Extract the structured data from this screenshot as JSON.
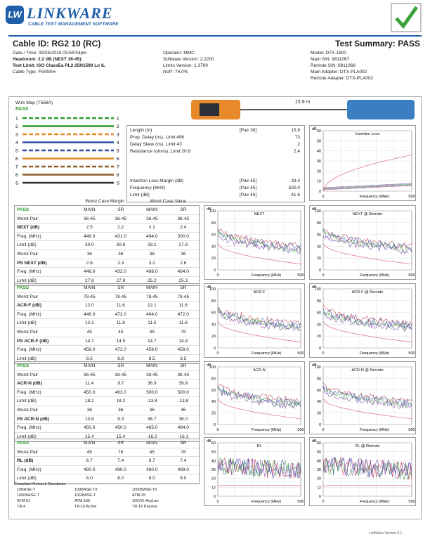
{
  "header": {
    "logo": "LW",
    "brand": "LINKWARE",
    "tagline": "CABLE TEST MANAGEMENT SOFTWARE",
    "cable_id": "Cable ID: RG2  10 (RC)",
    "summary": "Test Summary: PASS"
  },
  "info": [
    [
      "Date / Time: 05/25/2015 03:59:54pm",
      "Headroom: 2.2 dB (NEXT 36-45)",
      "Test Limit: ISO ClassEa PL2 25N1599 Lo IL",
      "Cable Type: F5S5SH"
    ],
    [
      "Operator: MMC",
      "Software Version: 2.2200",
      "Limits Version: 1.3700",
      "NVP: 74.0%"
    ],
    [
      "Model: DTX-1800",
      "Main S/N: 9811067",
      "Remote S/N: 9811068",
      "Main Adapter: DTX-PLA002",
      "Remote Adapter: DTX-PLA002"
    ]
  ],
  "wire_map": {
    "title": "Wire Map (T568A)",
    "status": "PASS",
    "pins": [
      "1",
      "2",
      "3",
      "4",
      "5",
      "6",
      "7",
      "8",
      "S"
    ],
    "length": "15.9 m"
  },
  "length_box": {
    "rows": [
      [
        "Length (m)",
        "[Pair 36]",
        "15.9"
      ],
      [
        "Prop. Delay (ns), Limit 496",
        "",
        "73"
      ],
      [
        "Delay Skew (ns), Limit 43",
        "",
        "2"
      ],
      [
        "Resistance (ohms), Limit 20.8",
        "",
        "2.4"
      ],
      [
        "Insertion Loss Margin (dB)",
        "[Pair 45]",
        "33.4"
      ],
      [
        "Frequency (MHz)",
        "[Pair 45]",
        "500.0"
      ],
      [
        "Limit (dB)",
        "[Pair 45]",
        "41.6"
      ]
    ]
  },
  "results_header": [
    "Worst Case Margin",
    "Worst Case Value"
  ],
  "tables": [
    {
      "rows": [
        [
          "PASS",
          "MAIN",
          "SR",
          "MAIN",
          "SR"
        ],
        [
          "Worst Pair",
          "36-45",
          "36-45",
          "36-45",
          "36-45"
        ],
        [
          "NEXT (dB)",
          "2.5",
          "2.2",
          "3.1",
          "2.4"
        ],
        [
          "Freq. (MHz)",
          "446.0",
          "431.0",
          "494.0",
          "500.0"
        ],
        [
          "Limit (dB)",
          "30.0",
          "30.6",
          "28.1",
          "27.9"
        ],
        [
          "Worst Pair",
          "36",
          "36",
          "36",
          "36"
        ],
        [
          "PS NEXT (dB)",
          "2.6",
          "2.3",
          "3.2",
          "2.6"
        ],
        [
          "Freq. (MHz)",
          "446.0",
          "432.0",
          "488.0",
          "494.0"
        ],
        [
          "Limit (dB)",
          "27.8",
          "27.8",
          "25.2",
          "25.3"
        ]
      ]
    },
    {
      "rows": [
        [
          "PASS",
          "MAIN",
          "SR",
          "MAIN",
          "SR"
        ],
        [
          "Worst Pair",
          "78-45",
          "78-45",
          "78-45",
          "78-45"
        ],
        [
          "ACR-F (dB)",
          "12.0",
          "11.6",
          "12.1",
          "11.6"
        ],
        [
          "Freq. (MHz)",
          "446.0",
          "472.0",
          "464.0",
          "472.0"
        ],
        [
          "Limit (dB)",
          "12.3",
          "11.8",
          "11.5",
          "11.6"
        ],
        [
          "Worst Pair",
          "45",
          "45",
          "45",
          "78"
        ],
        [
          "PS ACR-F (dB)",
          "14.7",
          "14.9",
          "14.7",
          "14.9"
        ],
        [
          "Freq. (MHz)",
          "458.0",
          "472.0",
          "458.0",
          "458.0"
        ],
        [
          "Limit (dB)",
          "8.5",
          "8.8",
          "8.5",
          "8.5"
        ]
      ]
    },
    {
      "rows": [
        [
          "PASS",
          "MAIN",
          "SR",
          "MAIN",
          "SR"
        ],
        [
          "Worst Pair",
          "36-45",
          "36-45",
          "36-45",
          "36-45"
        ],
        [
          "ACR-N (dB)",
          "11.4",
          "9.7",
          "38.9",
          "39.9"
        ],
        [
          "Freq. (MHz)",
          "450.0",
          "463.0",
          "500.0",
          "500.0"
        ],
        [
          "Limit (dB)",
          "18.2",
          "18.2",
          "-13.8",
          "-13.8"
        ],
        [
          "Worst Pair",
          "36",
          "36",
          "36",
          "36"
        ],
        [
          "PS ACR-N (dB)",
          "10.8",
          "9.3",
          "36.7",
          "36.0"
        ],
        [
          "Freq. (MHz)",
          "450.0",
          "450.0",
          "485.0",
          "494.0"
        ],
        [
          "Limit (dB)",
          "15.4",
          "15.4",
          "-16.2",
          "-16.1"
        ]
      ]
    },
    {
      "rows": [
        [
          "PASS",
          "MAIN",
          "SR",
          "MAIN",
          "SR"
        ],
        [
          "Worst Pair",
          "45",
          "78",
          "45",
          "78"
        ],
        [
          "RL (dB)",
          "6.7",
          "7.4",
          "6.7",
          "7.4"
        ],
        [
          "Freq. (MHz)",
          "490.0",
          "499.0",
          "490.0",
          "499.0"
        ],
        [
          "Limit (dB)",
          "8.0",
          "8.0",
          "8.0",
          "8.0"
        ]
      ]
    }
  ],
  "standards": {
    "title": "Compliant Network Standards:",
    "items": [
      "10BASE-T",
      "100BASE-TX",
      "1000BASE-TX",
      "1000BASE-T",
      "10GBASE-T",
      "ATM-25",
      "ATM-51",
      "ATM-155",
      "100VG-AnyLan",
      "TR-4",
      "TR-16 Active",
      "TR-16 Passive"
    ]
  },
  "graphs": [
    {
      "title": "Insertion Loss",
      "unit": "dB",
      "yticks": [
        60,
        50,
        40,
        30,
        20,
        10,
        0
      ],
      "xlabel": "Frequency (MHz)",
      "xticks": [
        0,
        500
      ]
    },
    {
      "title": "NEXT",
      "unit": "dB",
      "yticks": [
        100,
        80,
        60,
        40,
        20,
        0
      ],
      "xlabel": "Frequency (MHz)",
      "xticks": [
        0,
        500
      ]
    },
    {
      "title": "NEXT @ Remote",
      "unit": "dB",
      "yticks": [
        100,
        80,
        60,
        40,
        20,
        0
      ],
      "xlabel": "Frequency (MHz)",
      "xticks": [
        0,
        500
      ]
    },
    {
      "title": "ACR-F",
      "unit": "dB",
      "yticks": [
        100,
        80,
        60,
        40,
        20,
        0
      ],
      "xlabel": "Frequency (MHz)",
      "xticks": [
        0,
        500
      ]
    },
    {
      "title": "ACR-F @ Remote",
      "unit": "dB",
      "yticks": [
        100,
        80,
        60,
        40,
        20,
        0
      ],
      "xlabel": "Frequency (MHz)",
      "xticks": [
        0,
        500
      ]
    },
    {
      "title": "ACR-N",
      "unit": "dB",
      "yticks": [
        100,
        80,
        60,
        40,
        20,
        0
      ],
      "xlabel": "Frequency (MHz)",
      "xticks": [
        0,
        500
      ]
    },
    {
      "title": "ACR-N @ Remote",
      "unit": "dB",
      "yticks": [
        100,
        80,
        60,
        40,
        20,
        0
      ],
      "xlabel": "Frequency (MHz)",
      "xticks": [
        0,
        500
      ]
    },
    {
      "title": "RL",
      "unit": "dB",
      "yticks": [
        60,
        50,
        40,
        30,
        20,
        12,
        0
      ],
      "xlabel": "Frequency (MHz)",
      "xticks": [
        0,
        500
      ]
    },
    {
      "title": "RL @ Remote",
      "unit": "dB",
      "yticks": [
        60,
        50,
        40,
        30,
        20,
        12,
        0
      ],
      "xlabel": "Frequency (MHz)",
      "xticks": [
        0,
        500
      ]
    }
  ],
  "footer": "LinkWare Version 9.1"
}
